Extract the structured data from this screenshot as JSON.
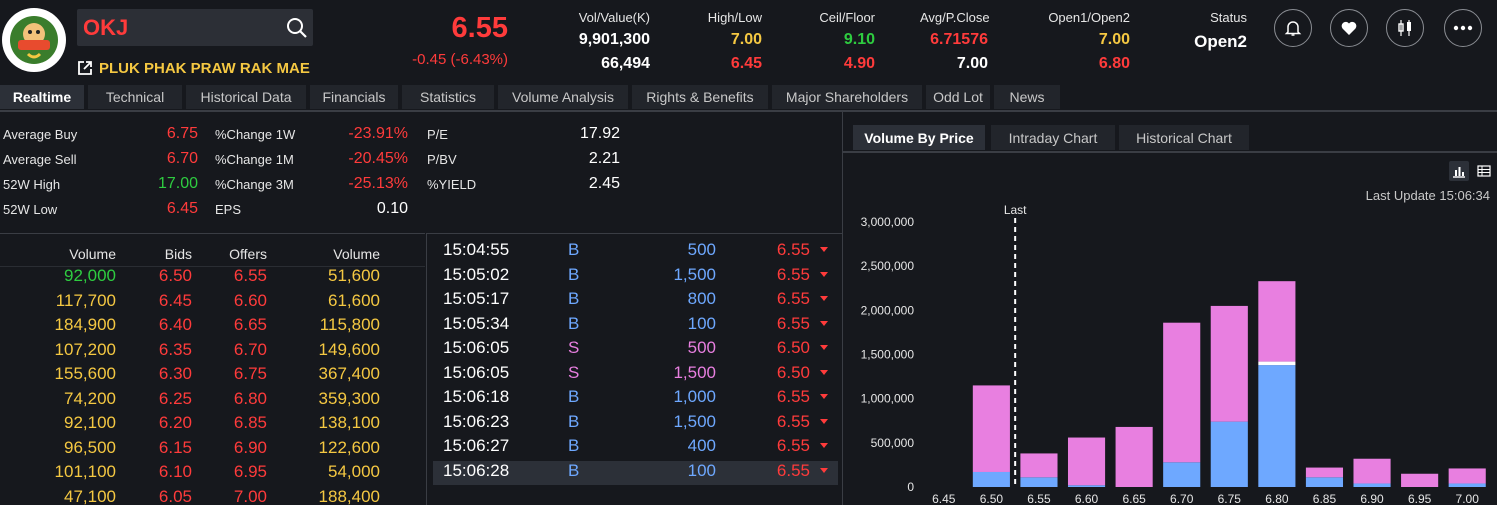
{
  "header": {
    "symbol": "OKJ",
    "company_name": "PLUK PHAK PRAW RAK MAE",
    "last_price": "6.55",
    "change": "-0.45 (-6.43%)",
    "stats": [
      {
        "label": "Vol/Value(K)",
        "v1": "9,901,300",
        "v2": "66,494",
        "c1": "#ffffff",
        "c2": "#ffffff"
      },
      {
        "label": "High/Low",
        "v1": "7.00",
        "v2": "6.45",
        "c1": "#f5c842",
        "c2": "#ff3b3b"
      },
      {
        "label": "Ceil/Floor",
        "v1": "9.10",
        "v2": "4.90",
        "c1": "#2ecc40",
        "c2": "#ff3b3b"
      },
      {
        "label": "Avg/P.Close",
        "v1": "6.71576",
        "v2": "7.00",
        "c1": "#ff3b3b",
        "c2": "#ffffff"
      },
      {
        "label": "Open1/Open2",
        "v1": "7.00",
        "v2": "6.80",
        "c1": "#f5c842",
        "c2": "#ff3b3b"
      }
    ],
    "status_label": "Status",
    "status_value": "Open2",
    "icons": [
      "bell-icon",
      "heart-icon",
      "candlestick-icon",
      "more-icon"
    ]
  },
  "tabs": [
    "Realtime",
    "Technical",
    "Historical Data",
    "Financials",
    "Statistics",
    "Volume Analysis",
    "Rights & Benefits",
    "Major Shareholders",
    "Odd Lot",
    "News"
  ],
  "summary": {
    "col1": [
      {
        "label": "Average Buy",
        "value": "6.75",
        "color": "#ff3b3b"
      },
      {
        "label": "Average Sell",
        "value": "6.70",
        "color": "#ff3b3b"
      },
      {
        "label": "52W High",
        "value": "17.00",
        "color": "#2ecc40"
      },
      {
        "label": "52W Low",
        "value": "6.45",
        "color": "#ff3b3b"
      }
    ],
    "col2": [
      {
        "label": "%Change 1W",
        "value": "-23.91%",
        "color": "#ff3b3b"
      },
      {
        "label": "%Change 1M",
        "value": "-20.45%",
        "color": "#ff3b3b"
      },
      {
        "label": "%Change 3M",
        "value": "-25.13%",
        "color": "#ff3b3b"
      },
      {
        "label": "EPS",
        "value": "0.10",
        "color": "#ffffff"
      }
    ],
    "col3": [
      {
        "label": "P/E",
        "value": "17.92",
        "color": "#ffffff"
      },
      {
        "label": "P/BV",
        "value": "2.21",
        "color": "#ffffff"
      },
      {
        "label": "%YIELD",
        "value": "2.45",
        "color": "#ffffff"
      }
    ]
  },
  "orderbook": {
    "headers": [
      "Volume",
      "Bids",
      "Offers",
      "Volume"
    ],
    "rows": [
      {
        "bid_vol": "92,000",
        "bid": "6.50",
        "offer": "6.55",
        "offer_vol": "51,600",
        "bid_vol_color": "#2ecc40"
      },
      {
        "bid_vol": "117,700",
        "bid": "6.45",
        "offer": "6.60",
        "offer_vol": "61,600",
        "bid_vol_color": "#f5c842"
      },
      {
        "bid_vol": "184,900",
        "bid": "6.40",
        "offer": "6.65",
        "offer_vol": "115,800",
        "bid_vol_color": "#f5c842"
      },
      {
        "bid_vol": "107,200",
        "bid": "6.35",
        "offer": "6.70",
        "offer_vol": "149,600",
        "bid_vol_color": "#f5c842"
      },
      {
        "bid_vol": "155,600",
        "bid": "6.30",
        "offer": "6.75",
        "offer_vol": "367,400",
        "bid_vol_color": "#f5c842"
      },
      {
        "bid_vol": "74,200",
        "bid": "6.25",
        "offer": "6.80",
        "offer_vol": "359,300",
        "bid_vol_color": "#f5c842"
      },
      {
        "bid_vol": "92,100",
        "bid": "6.20",
        "offer": "6.85",
        "offer_vol": "138,100",
        "bid_vol_color": "#f5c842"
      },
      {
        "bid_vol": "96,500",
        "bid": "6.15",
        "offer": "6.90",
        "offer_vol": "122,600",
        "bid_vol_color": "#f5c842"
      },
      {
        "bid_vol": "101,100",
        "bid": "6.10",
        "offer": "6.95",
        "offer_vol": "54,000",
        "bid_vol_color": "#f5c842"
      },
      {
        "bid_vol": "47,100",
        "bid": "6.05",
        "offer": "7.00",
        "offer_vol": "188,400",
        "bid_vol_color": "#f5c842"
      }
    ]
  },
  "trades": [
    {
      "time": "15:04:55",
      "side": "B",
      "volume": "500",
      "price": "6.55"
    },
    {
      "time": "15:05:02",
      "side": "B",
      "volume": "1,500",
      "price": "6.55"
    },
    {
      "time": "15:05:17",
      "side": "B",
      "volume": "800",
      "price": "6.55"
    },
    {
      "time": "15:05:34",
      "side": "B",
      "volume": "100",
      "price": "6.55"
    },
    {
      "time": "15:06:05",
      "side": "S",
      "volume": "500",
      "price": "6.50"
    },
    {
      "time": "15:06:05",
      "side": "S",
      "volume": "1,500",
      "price": "6.50"
    },
    {
      "time": "15:06:18",
      "side": "B",
      "volume": "1,000",
      "price": "6.55"
    },
    {
      "time": "15:06:23",
      "side": "B",
      "volume": "1,500",
      "price": "6.55"
    },
    {
      "time": "15:06:27",
      "side": "B",
      "volume": "400",
      "price": "6.55"
    },
    {
      "time": "15:06:28",
      "side": "B",
      "volume": "100",
      "price": "6.55"
    }
  ],
  "chart_tabs": [
    "Volume By Price",
    "Intraday Chart",
    "Historical Chart"
  ],
  "last_update": "Last Update 15:06:34",
  "chart_data": {
    "type": "bar",
    "stacked": true,
    "categories": [
      "6.45",
      "6.50",
      "6.55",
      "6.60",
      "6.65",
      "6.70",
      "6.75",
      "6.80",
      "6.85",
      "6.90",
      "6.95",
      "7.00"
    ],
    "series": [
      {
        "values": [
          0,
          170000,
          110000,
          20000,
          0,
          280000,
          740000,
          1380000,
          110000,
          40000,
          0,
          40000
        ],
        "color": "#6ea8ff"
      },
      {
        "values": [
          0,
          0,
          0,
          0,
          0,
          0,
          0,
          40000,
          0,
          0,
          0,
          0
        ],
        "color": "#ffffff"
      },
      {
        "values": [
          0,
          980000,
          270000,
          540000,
          680000,
          1580000,
          1310000,
          910000,
          110000,
          280000,
          150000,
          170000
        ],
        "color": "#e87fe0"
      }
    ],
    "ylim": [
      0,
      3000000
    ],
    "yticks": [
      "0",
      "500,000",
      "1,000,000",
      "1,500,000",
      "2,000,000",
      "2,500,000",
      "3,000,000"
    ],
    "marker_label": "Last",
    "marker_category": "6.55"
  }
}
